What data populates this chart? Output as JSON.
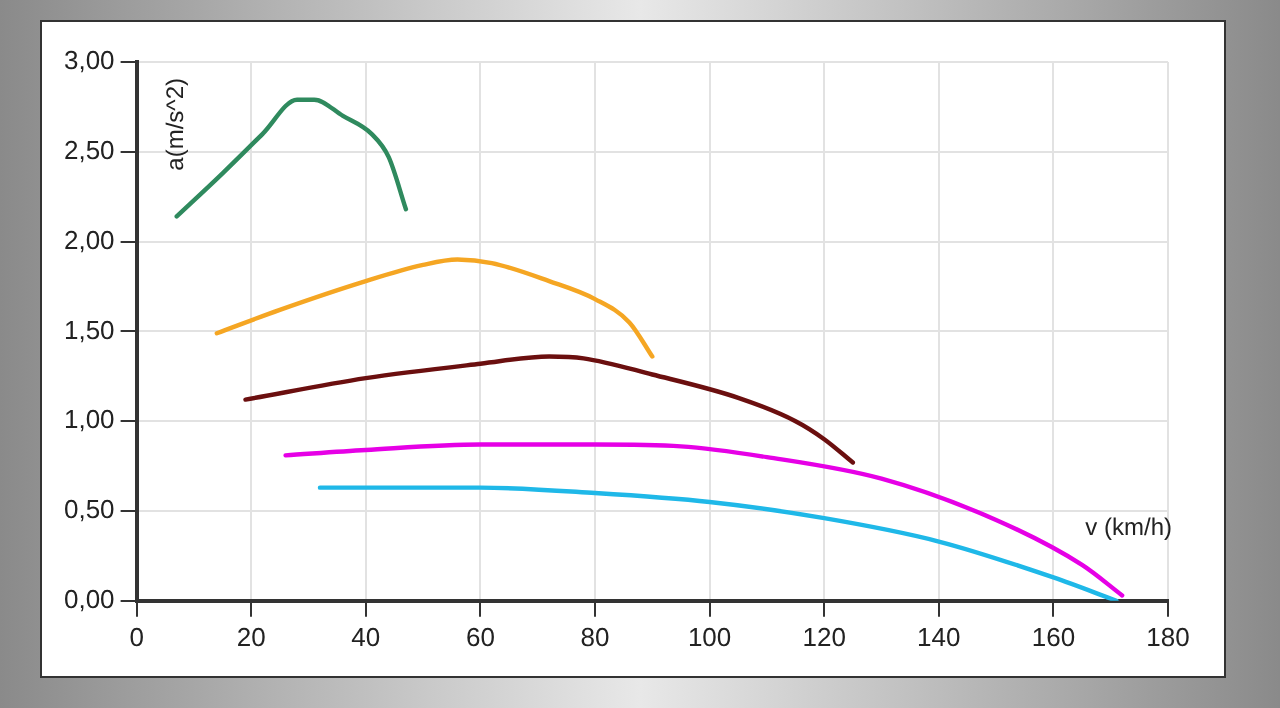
{
  "chart_data": {
    "type": "line",
    "xlabel": "v (km/h)",
    "ylabel": "a(m/s^2)",
    "grid": true,
    "legend": false,
    "marker": "none",
    "line_style": "solid",
    "xlim": [
      0,
      180
    ],
    "xticks": [
      0,
      20,
      40,
      60,
      80,
      100,
      120,
      140,
      160,
      180
    ],
    "ylim": [
      0,
      3
    ],
    "yticks": [
      {
        "value": 0,
        "label": "0,00"
      },
      {
        "value": 0.5,
        "label": "0,50"
      },
      {
        "value": 1,
        "label": "1,00"
      },
      {
        "value": 1.5,
        "label": "1,50"
      },
      {
        "value": 2,
        "label": "2,00"
      },
      {
        "value": 2.5,
        "label": "2,50"
      },
      {
        "value": 3,
        "label": "3,00"
      }
    ],
    "series": [
      {
        "color": "#2f8a5e",
        "x": [
          7,
          15,
          22,
          28,
          31,
          36,
          41,
          44,
          47
        ],
        "values": [
          2.14,
          2.38,
          2.6,
          2.79,
          2.79,
          2.7,
          2.6,
          2.47,
          2.18
        ]
      },
      {
        "color": "#f5a623",
        "x": [
          14,
          25,
          40,
          50,
          56,
          62,
          72,
          80,
          86,
          90
        ],
        "values": [
          1.49,
          1.62,
          1.78,
          1.87,
          1.9,
          1.88,
          1.78,
          1.68,
          1.55,
          1.36
        ]
      },
      {
        "color": "#6b0f0f",
        "x": [
          19,
          40,
          60,
          72,
          78,
          90,
          105,
          115,
          120,
          125
        ],
        "values": [
          1.12,
          1.24,
          1.32,
          1.36,
          1.35,
          1.26,
          1.13,
          1.0,
          0.9,
          0.77
        ]
      },
      {
        "color": "#e600e6",
        "x": [
          26,
          40,
          60,
          80,
          95,
          110,
          130,
          150,
          165,
          172
        ],
        "values": [
          0.81,
          0.84,
          0.87,
          0.87,
          0.86,
          0.8,
          0.68,
          0.45,
          0.2,
          0.03
        ]
      },
      {
        "color": "#1fb8e8",
        "x": [
          32,
          60,
          80,
          100,
          120,
          140,
          160,
          171
        ],
        "values": [
          0.63,
          0.63,
          0.6,
          0.55,
          0.46,
          0.33,
          0.13,
          0.0
        ]
      }
    ]
  }
}
